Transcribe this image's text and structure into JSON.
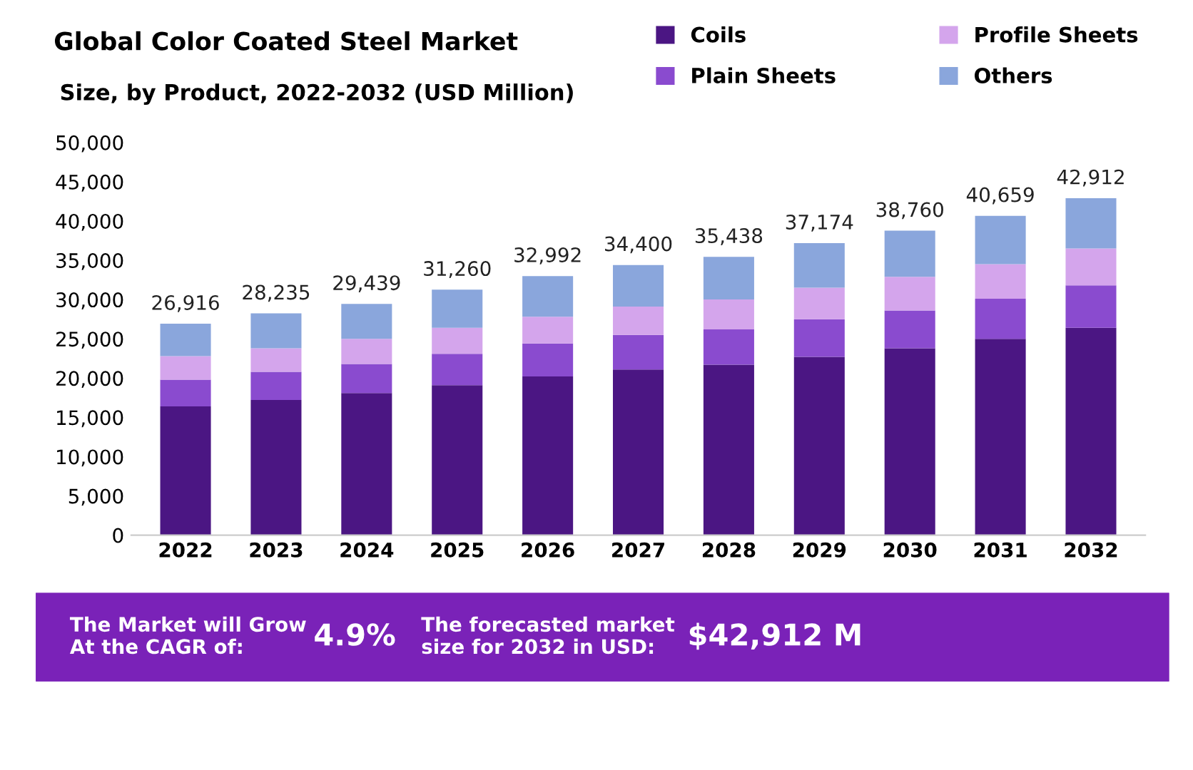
{
  "chart_data": {
    "type": "bar",
    "title": "Global Color Coated Steel Market",
    "subtitle": "Size, by Product, 2022-2032 (USD Million)",
    "categories": [
      "2022",
      "2023",
      "2024",
      "2025",
      "2026",
      "2027",
      "2028",
      "2029",
      "2030",
      "2031",
      "2032"
    ],
    "stacked": true,
    "series": [
      {
        "name": "Coils",
        "color": "#4b1683",
        "values": [
          16400,
          17200,
          18100,
          19100,
          20200,
          21100,
          21700,
          22700,
          23800,
          25000,
          26400
        ]
      },
      {
        "name": "Plain Sheets",
        "color": "#8a4bcf",
        "values": [
          3400,
          3600,
          3700,
          4000,
          4200,
          4400,
          4500,
          4800,
          4800,
          5100,
          5400
        ]
      },
      {
        "name": "Profile Sheets",
        "color": "#d4a5ec",
        "values": [
          3000,
          3000,
          3200,
          3300,
          3400,
          3600,
          3800,
          4000,
          4300,
          4400,
          4700
        ]
      },
      {
        "name": "Others",
        "color": "#8aa6dc",
        "values": [
          4116,
          4435,
          4439,
          4860,
          5192,
          5300,
          5438,
          5674,
          5860,
          6159,
          6412
        ]
      }
    ],
    "totals": [
      "26,916",
      "28,235",
      "29,439",
      "31,260",
      "32,992",
      "34,400",
      "35,438",
      "37,174",
      "38,760",
      "40,659",
      "42,912"
    ],
    "ylim": [
      0,
      50000
    ],
    "yticks": [
      {
        "value": 0,
        "label": "0"
      },
      {
        "value": 5000,
        "label": "5,000"
      },
      {
        "value": 10000,
        "label": "10,000"
      },
      {
        "value": 15000,
        "label": "15,000"
      },
      {
        "value": 20000,
        "label": "20,000"
      },
      {
        "value": 25000,
        "label": "25,000"
      },
      {
        "value": 30000,
        "label": "30,000"
      },
      {
        "value": 35000,
        "label": "35,000"
      },
      {
        "value": 40000,
        "label": "40,000"
      },
      {
        "value": 45000,
        "label": "45,000"
      },
      {
        "value": 50000,
        "label": "50,000"
      }
    ],
    "grid": false,
    "legend": "top right",
    "annotations": [
      "The Market will Grow\nAt the CAGR of:",
      "4.9%",
      "The forecasted market\nsize for 2032 in USD:",
      "$42,912 M"
    ]
  }
}
